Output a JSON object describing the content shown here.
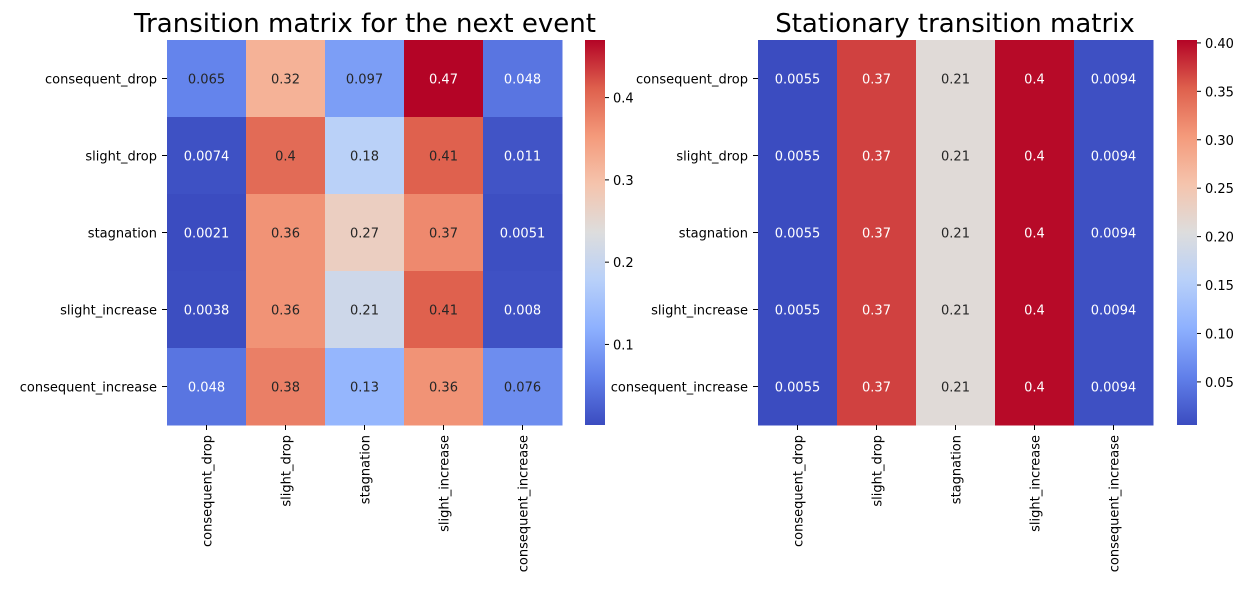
{
  "chart_data": [
    {
      "type": "heatmap",
      "title": "Transition matrix for the next event",
      "xlabel": "",
      "ylabel": "",
      "rows": [
        "consequent_drop",
        "slight_drop",
        "stagnation",
        "slight_increase",
        "consequent_increase"
      ],
      "cols": [
        "consequent_drop",
        "slight_drop",
        "stagnation",
        "slight_increase",
        "consequent_increase"
      ],
      "values": [
        [
          0.065,
          0.32,
          0.097,
          0.47,
          0.048
        ],
        [
          0.0074,
          0.4,
          0.18,
          0.41,
          0.011
        ],
        [
          0.0021,
          0.36,
          0.27,
          0.37,
          0.0051
        ],
        [
          0.0038,
          0.36,
          0.21,
          0.41,
          0.008
        ],
        [
          0.048,
          0.38,
          0.13,
          0.36,
          0.076
        ]
      ],
      "labels": [
        [
          "0.065",
          "0.32",
          "0.097",
          "0.47",
          "0.048"
        ],
        [
          "0.0074",
          "0.4",
          "0.18",
          "0.41",
          "0.011"
        ],
        [
          "0.0021",
          "0.36",
          "0.27",
          "0.37",
          "0.0051"
        ],
        [
          "0.0038",
          "0.36",
          "0.21",
          "0.41",
          "0.008"
        ],
        [
          "0.048",
          "0.38",
          "0.13",
          "0.36",
          "0.076"
        ]
      ],
      "colormap": "coolwarm",
      "color_range": [
        0.0021,
        0.47
      ],
      "colorbar_ticks": [
        0.1,
        0.2,
        0.3,
        0.4
      ],
      "colorbar_labels": [
        "0.1",
        "0.2",
        "0.3",
        "0.4"
      ]
    },
    {
      "type": "heatmap",
      "title": "Stationary transition matrix",
      "xlabel": "",
      "ylabel": "",
      "rows": [
        "consequent_drop",
        "slight_drop",
        "stagnation",
        "slight_increase",
        "consequent_increase"
      ],
      "cols": [
        "consequent_drop",
        "slight_drop",
        "stagnation",
        "slight_increase",
        "consequent_increase"
      ],
      "values": [
        [
          0.0055,
          0.37,
          0.21,
          0.4,
          0.0094
        ],
        [
          0.0055,
          0.37,
          0.21,
          0.4,
          0.0094
        ],
        [
          0.0055,
          0.37,
          0.21,
          0.4,
          0.0094
        ],
        [
          0.0055,
          0.37,
          0.21,
          0.4,
          0.0094
        ],
        [
          0.0055,
          0.37,
          0.21,
          0.4,
          0.0094
        ]
      ],
      "labels": [
        [
          "0.0055",
          "0.37",
          "0.21",
          "0.4",
          "0.0094"
        ],
        [
          "0.0055",
          "0.37",
          "0.21",
          "0.4",
          "0.0094"
        ],
        [
          "0.0055",
          "0.37",
          "0.21",
          "0.4",
          "0.0094"
        ],
        [
          "0.0055",
          "0.37",
          "0.21",
          "0.4",
          "0.0094"
        ],
        [
          "0.0055",
          "0.37",
          "0.21",
          "0.4",
          "0.0094"
        ]
      ],
      "colormap": "coolwarm",
      "color_range": [
        0.0055,
        0.403
      ],
      "colorbar_ticks": [
        0.05,
        0.1,
        0.15,
        0.2,
        0.25,
        0.3,
        0.35,
        0.4
      ],
      "colorbar_labels": [
        "0.05",
        "0.10",
        "0.15",
        "0.20",
        "0.25",
        "0.30",
        "0.35",
        "0.40"
      ]
    }
  ]
}
